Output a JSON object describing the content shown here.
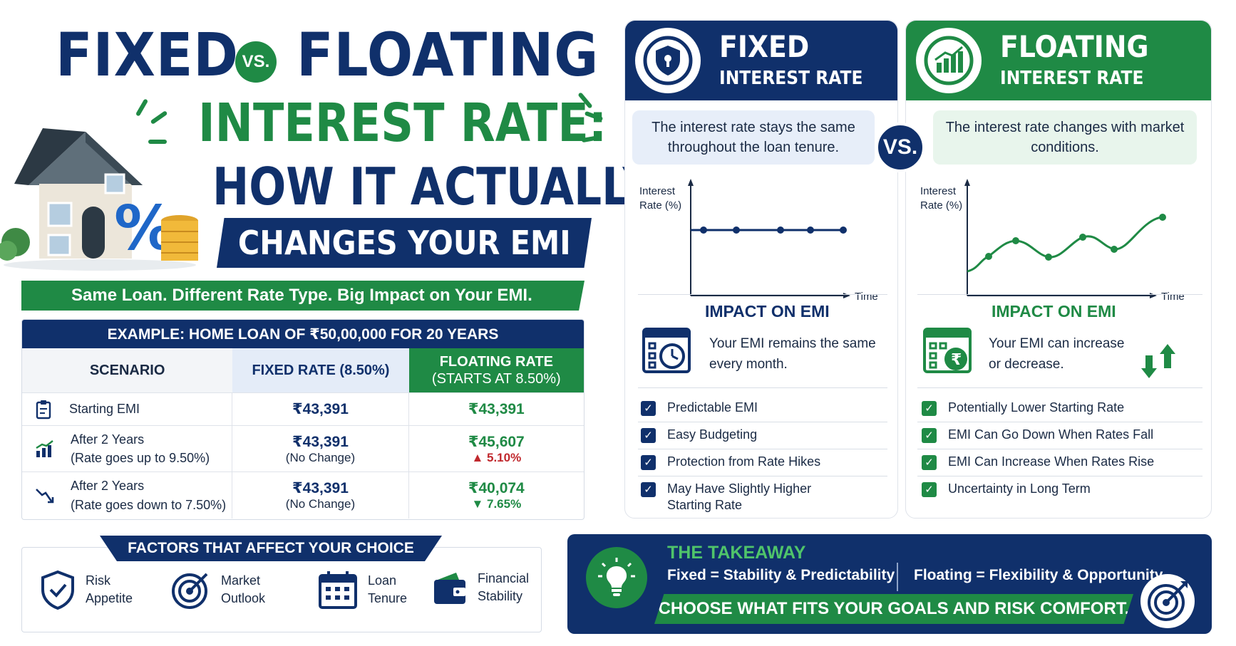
{
  "title": {
    "fixed": "FIXED",
    "vs": "VS.",
    "floating": "FLOATING",
    "line2": "INTEREST RATE:",
    "line3": "HOW IT ACTUALLY",
    "line4": "CHANGES YOUR EMI"
  },
  "tagline": "Same Loan. Different Rate Type. Big Impact on Your EMI.",
  "table": {
    "heading": "EXAMPLE: HOME LOAN OF ₹50,00,000 FOR 20 YEARS",
    "columns": [
      "SCENARIO",
      "FIXED RATE (8.50%)",
      "FLOATING RATE",
      "(STARTS AT 8.50%)"
    ],
    "rows": [
      {
        "label": "Starting EMI",
        "sub": "",
        "fixed": "₹43,391",
        "fixed_note": "",
        "floating": "₹43,391",
        "change": ""
      },
      {
        "label": "After 2 Years",
        "sub": "(Rate goes up to 9.50%)",
        "fixed": "₹43,391",
        "fixed_note": "(No Change)",
        "floating": "₹45,607",
        "change": "▲ 5.10%"
      },
      {
        "label": "After 2 Years",
        "sub": "(Rate goes down to 7.50%)",
        "fixed": "₹43,391",
        "fixed_note": "(No Change)",
        "floating": "₹40,074",
        "change": "▼ 7.65%"
      }
    ]
  },
  "factors": {
    "title": "FACTORS THAT AFFECT YOUR CHOICE",
    "items": [
      {
        "l1": "Risk",
        "l2": "Appetite",
        "icon": "shield-check-icon"
      },
      {
        "l1": "Market",
        "l2": "Outlook",
        "icon": "target-icon"
      },
      {
        "l1": "Loan",
        "l2": "Tenure",
        "icon": "calendar-icon"
      },
      {
        "l1": "Financial",
        "l2": "Stability",
        "icon": "wallet-icon"
      }
    ]
  },
  "fixed_panel": {
    "t1": "FIXED",
    "t2": "INTEREST RATE",
    "desc": "The interest rate stays the same throughout the loan tenure.",
    "y_label_1": "Interest",
    "y_label_2": "Rate (%)",
    "x_label": "Time",
    "impact_title": "IMPACT ON EMI",
    "impact_text": "Your EMI remains the same every month.",
    "points": [
      "Predictable EMI",
      "Easy Budgeting",
      "Protection from Rate Hikes",
      "May Have Slightly Higher Starting Rate"
    ]
  },
  "vs_label": "VS.",
  "floating_panel": {
    "t1": "FLOATING",
    "t2": "INTEREST RATE",
    "desc": "The interest rate changes with market conditions.",
    "y_label_1": "Interest",
    "y_label_2": "Rate (%)",
    "x_label": "Time",
    "impact_title": "IMPACT ON EMI",
    "impact_text": "Your EMI can increase or decrease.",
    "points": [
      "Potentially Lower Starting Rate",
      "EMI Can Go Down When Rates Fall",
      "EMI Can Increase When Rates Rise",
      "Uncertainty in Long Term"
    ]
  },
  "takeaway": {
    "title": "THE TAKEAWAY",
    "left": "Fixed = Stability & Predictability",
    "right": "Floating = Flexibility & Opportunity",
    "band": "CHOOSE WHAT FITS YOUR GOALS AND RISK COMFORT."
  },
  "colors": {
    "navy": "#10306b",
    "green": "#1f8a45",
    "red": "#c0282d"
  }
}
